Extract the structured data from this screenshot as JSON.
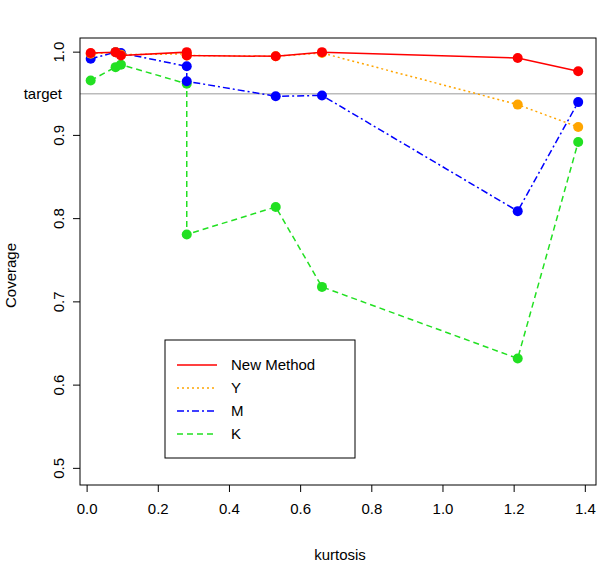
{
  "chart_data": {
    "type": "line",
    "x_label": "kurtosis",
    "y_label": "Coverage",
    "x": [
      0.01,
      0.08,
      0.095,
      0.28,
      0.28,
      0.53,
      0.66,
      1.21,
      1.38
    ],
    "series": [
      {
        "name": "New Method",
        "color": "#ff0000",
        "line_style": "solid",
        "marker": "circle",
        "values": [
          0.999,
          1.0,
          0.996,
          1.0,
          0.996,
          0.995,
          1.0,
          0.993,
          0.977
        ]
      },
      {
        "name": "Y",
        "color": "#ffa500",
        "line_style": "dotted",
        "marker": "circle",
        "values": [
          0.998,
          1.0,
          0.997,
          0.998,
          0.996,
          0.995,
          0.999,
          0.937,
          0.91
        ]
      },
      {
        "name": "M",
        "color": "#0000ff",
        "line_style": "dashdot",
        "marker": "circle",
        "values": [
          0.992,
          1.0,
          0.999,
          0.983,
          0.965,
          0.947,
          0.948,
          0.809,
          0.94
        ]
      },
      {
        "name": "K",
        "color": "#22e022",
        "line_style": "dashed",
        "marker": "circle",
        "values": [
          0.966,
          0.982,
          0.985,
          0.962,
          0.781,
          0.814,
          0.718,
          0.632,
          0.892
        ]
      }
    ],
    "xlim": [
      -0.02,
      1.43
    ],
    "ylim": [
      0.48,
      1.017
    ],
    "xticks": [
      {
        "value": 0,
        "label": "0.0"
      },
      0.2,
      0.4,
      0.6,
      0.8,
      {
        "value": 1,
        "label": "1.0"
      },
      1.2,
      1.4
    ],
    "yticks": [
      0.5,
      0.6,
      0.7,
      0.8,
      0.9,
      {
        "value": 1,
        "label": "1.0"
      }
    ],
    "annotations": [
      {
        "text": "target",
        "y": 0.95
      }
    ],
    "grid": false,
    "legend": "bottomleft"
  }
}
